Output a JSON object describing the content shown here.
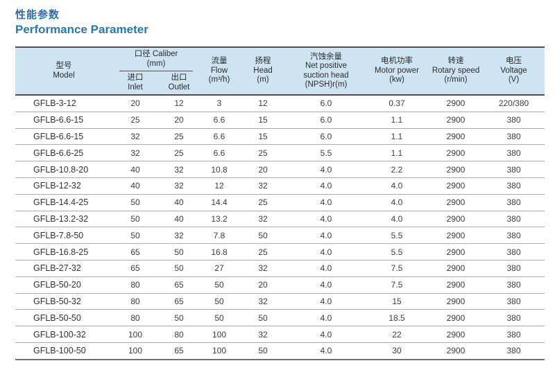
{
  "title": {
    "zh": "性能参数",
    "en": "Performance Parameter"
  },
  "colors": {
    "title_zh_blue": "#2e6da6",
    "title_en_blue": "#2579b8",
    "header_bg": "#cfe4f2",
    "border_dark": "#4f4f4f",
    "row_line": "#a9a9a9"
  },
  "table": {
    "headers": {
      "model": {
        "lines": [
          "型号",
          "Model"
        ]
      },
      "caliber_group": {
        "lines": [
          "口径 Caliber",
          "(mm)"
        ]
      },
      "inlet": {
        "lines": [
          "进口",
          "Inlet"
        ]
      },
      "outlet": {
        "lines": [
          "出口",
          "Outlet"
        ]
      },
      "flow": {
        "lines": [
          "流量",
          "Flow",
          "(m³/h)"
        ]
      },
      "head": {
        "lines": [
          "扬程",
          "Head",
          "(m)"
        ]
      },
      "npsh": {
        "lines": [
          "汽蚀余量",
          "Net positive",
          "suction head",
          "(NPSH)r(m)"
        ]
      },
      "power": {
        "lines": [
          "电机功率",
          "Motor power",
          "(kw)"
        ]
      },
      "speed": {
        "lines": [
          "转速",
          "Rotary speed",
          "(r/min)"
        ]
      },
      "voltage": {
        "lines": [
          "电压",
          "Voltage",
          "(V)"
        ]
      }
    },
    "rows": [
      {
        "model": "GFLB-3-12",
        "inlet": "20",
        "outlet": "12",
        "flow": "3",
        "head": "12",
        "npsh": "6.0",
        "power": "0.37",
        "speed": "2900",
        "voltage": "220/380"
      },
      {
        "model": "GFLB-6.6-15",
        "inlet": "25",
        "outlet": "20",
        "flow": "6.6",
        "head": "15",
        "npsh": "6.0",
        "power": "1.1",
        "speed": "2900",
        "voltage": "380"
      },
      {
        "model": "GFLB-6.6-15",
        "inlet": "32",
        "outlet": "25",
        "flow": "6.6",
        "head": "15",
        "npsh": "6.0",
        "power": "1.1",
        "speed": "2900",
        "voltage": "380"
      },
      {
        "model": "GFLB-6.6-25",
        "inlet": "32",
        "outlet": "25",
        "flow": "6.6",
        "head": "25",
        "npsh": "5.5",
        "power": "1.1",
        "speed": "2900",
        "voltage": "380"
      },
      {
        "model": "GFLB-10.8-20",
        "inlet": "40",
        "outlet": "32",
        "flow": "10.8",
        "head": "20",
        "npsh": "4.0",
        "power": "2.2",
        "speed": "2900",
        "voltage": "380"
      },
      {
        "model": "GFLB-12-32",
        "inlet": "40",
        "outlet": "32",
        "flow": "12",
        "head": "32",
        "npsh": "4.0",
        "power": "4.0",
        "speed": "2900",
        "voltage": "380"
      },
      {
        "model": "GFLB-14.4-25",
        "inlet": "50",
        "outlet": "40",
        "flow": "14.4",
        "head": "25",
        "npsh": "4.0",
        "power": "4.0",
        "speed": "2900",
        "voltage": "380"
      },
      {
        "model": "GFLB-13.2-32",
        "inlet": "50",
        "outlet": "40",
        "flow": "13.2",
        "head": "32",
        "npsh": "4.0",
        "power": "4.0",
        "speed": "2900",
        "voltage": "380"
      },
      {
        "model": "GFLB-7.8-50",
        "inlet": "50",
        "outlet": "32",
        "flow": "7.8",
        "head": "50",
        "npsh": "4.0",
        "power": "5.5",
        "speed": "2900",
        "voltage": "380"
      },
      {
        "model": "GFLB-16.8-25",
        "inlet": "65",
        "outlet": "50",
        "flow": "16.8",
        "head": "25",
        "npsh": "4.0",
        "power": "5.5",
        "speed": "2900",
        "voltage": "380"
      },
      {
        "model": "GFLB-27-32",
        "inlet": "65",
        "outlet": "50",
        "flow": "27",
        "head": "32",
        "npsh": "4.0",
        "power": "7.5",
        "speed": "2900",
        "voltage": "380"
      },
      {
        "model": "GFLB-50-20",
        "inlet": "80",
        "outlet": "65",
        "flow": "50",
        "head": "20",
        "npsh": "4.0",
        "power": "7.5",
        "speed": "2900",
        "voltage": "380"
      },
      {
        "model": "GFLB-50-32",
        "inlet": "80",
        "outlet": "65",
        "flow": "50",
        "head": "32",
        "npsh": "4.0",
        "power": "15",
        "speed": "2900",
        "voltage": "380"
      },
      {
        "model": "GFLB-50-50",
        "inlet": "80",
        "outlet": "50",
        "flow": "50",
        "head": "50",
        "npsh": "4.0",
        "power": "18.5",
        "speed": "2900",
        "voltage": "380"
      },
      {
        "model": "GFLB-100-32",
        "inlet": "100",
        "outlet": "80",
        "flow": "100",
        "head": "32",
        "npsh": "4.0",
        "power": "22",
        "speed": "2900",
        "voltage": "380"
      },
      {
        "model": "GFLB-100-50",
        "inlet": "100",
        "outlet": "65",
        "flow": "100",
        "head": "50",
        "npsh": "4.0",
        "power": "30",
        "speed": "2900",
        "voltage": "380"
      }
    ]
  }
}
